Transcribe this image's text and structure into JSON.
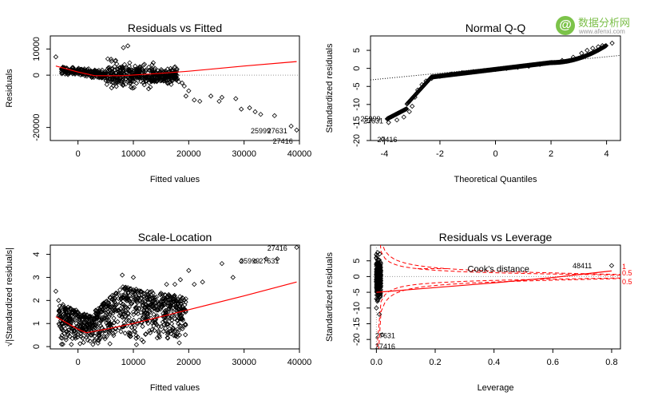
{
  "watermark": {
    "title": "数据分析网",
    "url": "www.afenxi.com"
  },
  "chart_data": [
    {
      "type": "scatter",
      "title": "Residuals vs Fitted",
      "xlabel": "Fitted values",
      "ylabel": "Residuals",
      "xlim": [
        -5000,
        40000
      ],
      "ylim": [
        -25000,
        15000
      ],
      "xticks": [
        "0",
        "10000",
        "20000",
        "30000",
        "40000"
      ],
      "yticks": [
        "-20000",
        "0",
        "10000"
      ],
      "reference_line": 0,
      "point_color": "#000000",
      "smooth_color": "#ff0000",
      "smooth": [
        [
          -4000,
          3500
        ],
        [
          0,
          1200
        ],
        [
          3000,
          -200
        ],
        [
          8000,
          -200
        ],
        [
          15000,
          700
        ],
        [
          20000,
          1500
        ],
        [
          30000,
          3500
        ],
        [
          39500,
          5200
        ]
      ],
      "points": [
        [
          -4000,
          7000
        ],
        [
          17500,
          -1200
        ],
        [
          17800,
          -1800
        ],
        [
          18200,
          -2500
        ],
        [
          18800,
          -3000
        ],
        [
          19200,
          -4200
        ],
        [
          20000,
          -6000
        ],
        [
          19500,
          -8000
        ],
        [
          21000,
          -9500
        ],
        [
          22000,
          -10000
        ],
        [
          24000,
          -8000
        ],
        [
          25500,
          -10000
        ],
        [
          26000,
          -8500
        ],
        [
          28500,
          -9000
        ],
        [
          29500,
          -13000
        ],
        [
          31000,
          -12500
        ],
        [
          32000,
          -14000
        ],
        [
          33000,
          -15000
        ],
        [
          35500,
          -15500
        ],
        [
          38500,
          -19500
        ],
        [
          39500,
          -21000
        ],
        [
          8200,
          10500
        ],
        [
          9000,
          11200
        ]
      ],
      "outliers": [
        {
          "label": "25999",
          "x": 33000,
          "y": -21000
        },
        {
          "label": "27631",
          "x": 36000,
          "y": -21000
        },
        {
          "label": "27416",
          "x": 37000,
          "y": -25000
        }
      ]
    },
    {
      "type": "scatter",
      "title": "Normal Q-Q",
      "xlabel": "Theoretical Quantiles",
      "ylabel": "Standardized residuals",
      "xlim": [
        -4.5,
        4.5
      ],
      "ylim": [
        -20,
        9
      ],
      "xticks": [
        "-4",
        "-2",
        "0",
        "2",
        "4"
      ],
      "yticks": [
        "-20",
        "-15",
        "-10",
        "-5",
        "0",
        "5"
      ],
      "qq_line": [
        [
          -4.5,
          -3.2
        ],
        [
          4.5,
          3.6
        ]
      ],
      "points": [
        [
          -4.05,
          -19.6
        ],
        [
          -3.85,
          -15
        ],
        [
          -3.55,
          -14.3
        ],
        [
          -3.3,
          -13.5
        ],
        [
          -3.1,
          -12
        ],
        [
          -3.0,
          -10.5
        ],
        [
          -2.9,
          -8
        ],
        [
          -2.8,
          -6
        ],
        [
          -2.65,
          -4.5
        ],
        [
          -2.5,
          -3.5
        ],
        [
          -2.3,
          -2.8
        ],
        [
          -2.0,
          -2.2
        ],
        [
          -1.6,
          -1.6
        ],
        [
          -1.2,
          -1.2
        ],
        [
          -0.8,
          -0.9
        ],
        [
          -0.4,
          -0.6
        ],
        [
          0.0,
          -0.3
        ],
        [
          0.4,
          0.0
        ],
        [
          0.8,
          0.3
        ],
        [
          1.2,
          0.6
        ],
        [
          1.6,
          1.1
        ],
        [
          2.0,
          1.6
        ],
        [
          2.4,
          2.2
        ],
        [
          2.8,
          3.1
        ],
        [
          3.1,
          4.2
        ],
        [
          3.3,
          5.0
        ],
        [
          3.5,
          5.6
        ],
        [
          3.7,
          6.0
        ],
        [
          3.85,
          6.3
        ],
        [
          4.2,
          7.0
        ]
      ],
      "outliers": [
        {
          "label": "25999",
          "x": -4.5,
          "y": -13.8
        },
        {
          "label": "27631",
          "x": -4.4,
          "y": -14.3
        },
        {
          "label": "27416",
          "x": -3.9,
          "y": -19.6
        }
      ]
    },
    {
      "type": "scatter",
      "title": "Scale-Location",
      "xlabel": "Fitted values",
      "ylabel": "√|Standardized residuals|",
      "xlim": [
        -5000,
        40000
      ],
      "ylim": [
        -0.1,
        4.4
      ],
      "xticks": [
        "0",
        "10000",
        "20000",
        "30000",
        "40000"
      ],
      "yticks": [
        "0",
        "1",
        "2",
        "3",
        "4"
      ],
      "smooth": [
        [
          -4000,
          1.3
        ],
        [
          0,
          0.75
        ],
        [
          1500,
          0.6
        ],
        [
          5000,
          0.75
        ],
        [
          10000,
          1.0
        ],
        [
          20000,
          1.6
        ],
        [
          30000,
          2.2
        ],
        [
          39500,
          2.8
        ]
      ],
      "points": [
        [
          -4000,
          2.4
        ],
        [
          -3500,
          2.0
        ],
        [
          8000,
          3.1
        ],
        [
          10000,
          3.0
        ],
        [
          16000,
          2.7
        ],
        [
          17500,
          2.7
        ],
        [
          18500,
          2.9
        ],
        [
          20000,
          3.3
        ],
        [
          21000,
          2.7
        ],
        [
          22500,
          2.8
        ],
        [
          26000,
          3.6
        ],
        [
          28000,
          3.0
        ],
        [
          29500,
          3.7
        ],
        [
          32000,
          3.7
        ],
        [
          34000,
          3.8
        ],
        [
          36000,
          3.8
        ],
        [
          39500,
          4.3
        ]
      ],
      "outliers": [
        {
          "label": "27416",
          "x": 36000,
          "y": 4.3
        },
        {
          "label": "25999",
          "x": 31000,
          "y": 3.75
        },
        {
          "label": "27631",
          "x": 34500,
          "y": 3.75
        }
      ]
    },
    {
      "type": "scatter",
      "title": "Residuals vs Leverage",
      "xlabel": "Leverage",
      "ylabel": "Standardized residuals",
      "xlim": [
        -0.02,
        0.83
      ],
      "ylim": [
        -23,
        10
      ],
      "xticks": [
        "0.0",
        "0.2",
        "0.4",
        "0.6",
        "0.8"
      ],
      "yticks": [
        "-20",
        "-15",
        "-10",
        "-5",
        "0",
        "5"
      ],
      "legend_text": "Cook's distance",
      "legend_position": "center",
      "contour_labels": [
        "1",
        "0.5",
        "0.5"
      ],
      "smooth": [
        [
          0.0,
          -5
        ],
        [
          0.2,
          -3.5
        ],
        [
          0.4,
          -2
        ],
        [
          0.6,
          -0.3
        ],
        [
          0.8,
          1.8
        ]
      ],
      "points": [
        [
          0.0,
          -10
        ],
        [
          0.0,
          6
        ],
        [
          0.0,
          7
        ],
        [
          0.01,
          -12
        ],
        [
          0.01,
          3
        ],
        [
          0.02,
          -18.5
        ],
        [
          0.8,
          3.5
        ]
      ],
      "outliers": [
        {
          "label": "48411",
          "x": 0.7,
          "y": 3.6
        },
        {
          "label": "27631",
          "x": 0.03,
          "y": -18.5
        },
        {
          "label": "27416",
          "x": 0.03,
          "y": -22
        }
      ]
    }
  ]
}
